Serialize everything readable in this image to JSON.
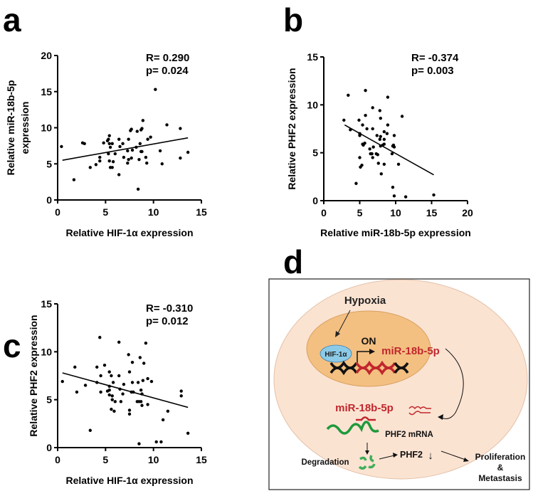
{
  "chart_data": [
    {
      "panel": "a",
      "type": "scatter",
      "xlabel": "Relative HIF-1α expression",
      "ylabel_line1": "Relative miR-18b-5p",
      "ylabel_line2": "expression",
      "xlim": [
        0,
        15
      ],
      "ylim": [
        0,
        20
      ],
      "xticks": [
        0,
        5,
        10,
        15
      ],
      "yticks": [
        0,
        5,
        10,
        15,
        20
      ],
      "r_text": "R=  0.290",
      "p_text": "p=  0.024",
      "fit": [
        [
          0.5,
          5.5
        ],
        [
          13.6,
          8.6
        ]
      ],
      "points": [
        [
          0.4,
          7.4
        ],
        [
          1.7,
          2.8
        ],
        [
          2.6,
          7.9
        ],
        [
          2.8,
          7.8
        ],
        [
          3.4,
          4.5
        ],
        [
          4.0,
          4.9
        ],
        [
          4.4,
          5.9
        ],
        [
          4.4,
          5.4
        ],
        [
          4.8,
          7.9
        ],
        [
          5.2,
          8.2
        ],
        [
          5.3,
          8.4
        ],
        [
          5.4,
          8.9
        ],
        [
          5.4,
          7.8
        ],
        [
          5.5,
          7.3
        ],
        [
          5.3,
          6.4
        ],
        [
          5.4,
          5.4
        ],
        [
          5.5,
          4.5
        ],
        [
          5.7,
          4.5
        ],
        [
          5.7,
          7.8
        ],
        [
          5.8,
          5.3
        ],
        [
          6.0,
          6.4
        ],
        [
          6.4,
          8.4
        ],
        [
          6.4,
          3.5
        ],
        [
          6.5,
          7.4
        ],
        [
          6.8,
          7.8
        ],
        [
          6.9,
          5.9
        ],
        [
          7.3,
          6.8
        ],
        [
          7.4,
          5.6
        ],
        [
          7.3,
          5.1
        ],
        [
          7.4,
          8.4
        ],
        [
          7.6,
          9.6
        ],
        [
          7.7,
          9.8
        ],
        [
          7.7,
          5.8
        ],
        [
          7.8,
          6.9
        ],
        [
          8.4,
          1.5
        ],
        [
          8.2,
          7.3
        ],
        [
          8.3,
          9.5
        ],
        [
          8.6,
          7.8
        ],
        [
          8.7,
          6.7
        ],
        [
          8.5,
          5.6
        ],
        [
          8.8,
          6.7
        ],
        [
          8.7,
          9.7
        ],
        [
          8.8,
          9.9
        ],
        [
          8.9,
          11.0
        ],
        [
          9.2,
          5.9
        ],
        [
          9.3,
          5.1
        ],
        [
          9.4,
          8.4
        ],
        [
          9.7,
          8.7
        ],
        [
          10.2,
          15.3
        ],
        [
          10.7,
          6.8
        ],
        [
          10.9,
          5.0
        ],
        [
          11.4,
          10.4
        ],
        [
          12.8,
          9.9
        ],
        [
          12.8,
          5.8
        ],
        [
          13.6,
          6.6
        ]
      ]
    },
    {
      "panel": "b",
      "type": "scatter",
      "xlabel": "Relative miR-18b-5p expression",
      "ylabel_line1": "Relative PHF2 expression",
      "xlim": [
        0,
        20
      ],
      "ylim": [
        0,
        15
      ],
      "xticks": [
        0,
        5,
        10,
        15,
        20
      ],
      "yticks": [
        0,
        5,
        10,
        15
      ],
      "r_text": "R=  -0.374",
      "p_text": "p=  0.003",
      "fit": [
        [
          2.9,
          7.9
        ],
        [
          15.3,
          2.7
        ]
      ],
      "points": [
        [
          2.8,
          8.4
        ],
        [
          3.4,
          11.0
        ],
        [
          3.7,
          7.4
        ],
        [
          4.5,
          1.8
        ],
        [
          4.9,
          8.4
        ],
        [
          5.0,
          7.0
        ],
        [
          5.0,
          6.8
        ],
        [
          5.0,
          4.5
        ],
        [
          5.1,
          3.5
        ],
        [
          5.3,
          3.7
        ],
        [
          5.4,
          7.9
        ],
        [
          5.4,
          5.9
        ],
        [
          5.5,
          5.8
        ],
        [
          5.7,
          6.0
        ],
        [
          5.8,
          8.9
        ],
        [
          5.8,
          11.5
        ],
        [
          6.0,
          7.5
        ],
        [
          6.4,
          5.4
        ],
        [
          6.5,
          4.9
        ],
        [
          6.6,
          4.9
        ],
        [
          6.7,
          4.9
        ],
        [
          6.8,
          4.5
        ],
        [
          6.8,
          9.7
        ],
        [
          6.8,
          7.5
        ],
        [
          6.9,
          5.6
        ],
        [
          7.3,
          4.9
        ],
        [
          7.4,
          6.8
        ],
        [
          7.5,
          4.8
        ],
        [
          7.6,
          3.9
        ],
        [
          7.8,
          9.4
        ],
        [
          7.8,
          6.4
        ],
        [
          7.9,
          6.7
        ],
        [
          7.9,
          8.6
        ],
        [
          8.0,
          2.8
        ],
        [
          7.9,
          5.7
        ],
        [
          8.2,
          5.8
        ],
        [
          8.4,
          5.9
        ],
        [
          8.4,
          7.2
        ],
        [
          8.4,
          6.4
        ],
        [
          8.4,
          3.8
        ],
        [
          8.8,
          7.0
        ],
        [
          8.9,
          10.8
        ],
        [
          8.9,
          7.9
        ],
        [
          9.5,
          4.9
        ],
        [
          9.6,
          5.7
        ],
        [
          9.6,
          1.4
        ],
        [
          9.7,
          5.8
        ],
        [
          9.8,
          0.5
        ],
        [
          9.8,
          5.6
        ],
        [
          9.8,
          6.8
        ],
        [
          10.4,
          3.8
        ],
        [
          10.9,
          8.8
        ],
        [
          11.4,
          0.4
        ],
        [
          15.3,
          0.6
        ]
      ]
    },
    {
      "panel": "c",
      "type": "scatter",
      "xlabel": "Relative HIF-1α expression",
      "ylabel_line1": "Relative PHF2 expression",
      "xlim": [
        0,
        15
      ],
      "ylim": [
        0,
        15
      ],
      "xticks": [
        0,
        5,
        10,
        15
      ],
      "yticks": [
        0,
        5,
        10,
        15
      ],
      "r_text": "R=  -0.310",
      "p_text": "p=  0.012",
      "fit": [
        [
          0.5,
          7.8
        ],
        [
          13.6,
          4.2
        ]
      ],
      "points": [
        [
          0.5,
          6.9
        ],
        [
          1.8,
          8.4
        ],
        [
          2.0,
          5.8
        ],
        [
          2.9,
          6.5
        ],
        [
          3.4,
          1.8
        ],
        [
          4.1,
          8.4
        ],
        [
          4.1,
          6.8
        ],
        [
          4.4,
          11.5
        ],
        [
          4.5,
          7.5
        ],
        [
          4.5,
          5.8
        ],
        [
          4.9,
          8.6
        ],
        [
          5.2,
          5.9
        ],
        [
          5.4,
          6.0
        ],
        [
          5.4,
          7.9
        ],
        [
          5.4,
          6.4
        ],
        [
          5.4,
          5.5
        ],
        [
          5.6,
          7.5
        ],
        [
          5.6,
          4.0
        ],
        [
          5.7,
          5.4
        ],
        [
          5.7,
          5.0
        ],
        [
          5.8,
          6.8
        ],
        [
          5.9,
          3.8
        ],
        [
          6.0,
          4.8
        ],
        [
          6.4,
          11.0
        ],
        [
          6.4,
          7.5
        ],
        [
          6.5,
          6.1
        ],
        [
          6.6,
          4.8
        ],
        [
          6.8,
          5.6
        ],
        [
          6.9,
          6.6
        ],
        [
          7.4,
          9.7
        ],
        [
          7.5,
          7.9
        ],
        [
          7.5,
          3.9
        ],
        [
          7.5,
          3.5
        ],
        [
          7.7,
          5.8
        ],
        [
          7.8,
          8.9
        ],
        [
          7.8,
          6.8
        ],
        [
          7.9,
          5.8
        ],
        [
          8.3,
          4.8
        ],
        [
          8.4,
          6.8
        ],
        [
          8.5,
          4.8
        ],
        [
          8.5,
          0.4
        ],
        [
          8.6,
          9.4
        ],
        [
          8.7,
          6.0
        ],
        [
          8.7,
          4.8
        ],
        [
          8.8,
          5.6
        ],
        [
          8.8,
          4.4
        ],
        [
          8.9,
          7.0
        ],
        [
          9.0,
          8.8
        ],
        [
          9.2,
          10.9
        ],
        [
          9.4,
          7.2
        ],
        [
          9.4,
          4.5
        ],
        [
          9.8,
          6.9
        ],
        [
          11.0,
          2.9
        ],
        [
          10.3,
          0.6
        ],
        [
          10.8,
          0.6
        ],
        [
          11.5,
          3.8
        ],
        [
          12.9,
          5.9
        ],
        [
          12.9,
          5.4
        ],
        [
          13.6,
          1.5
        ]
      ]
    }
  ],
  "panels": {
    "a": "a",
    "b": "b",
    "c": "c",
    "d": "d"
  },
  "diagram": {
    "hypoxia": "Hypoxia",
    "hif": "HIF-1α",
    "on": "ON",
    "mir_nucleus": "miR-18b-5p",
    "mir_cytoplasm": "miR-18b-5p",
    "mrna": "PHF2 mRNA",
    "degradation": "Degradation",
    "phf2": "PHF2",
    "down_arrow": "↓",
    "proliferation": "Proliferation",
    "amp": "&",
    "metastasis": "Metastasis",
    "colors": {
      "cell": "#fbe3d2",
      "nucleus": "#f3c082",
      "hif": "#8ccbe8",
      "mir": "#c0272d",
      "mrna": "#1f9a3c",
      "frag": "#3fae5a"
    }
  }
}
